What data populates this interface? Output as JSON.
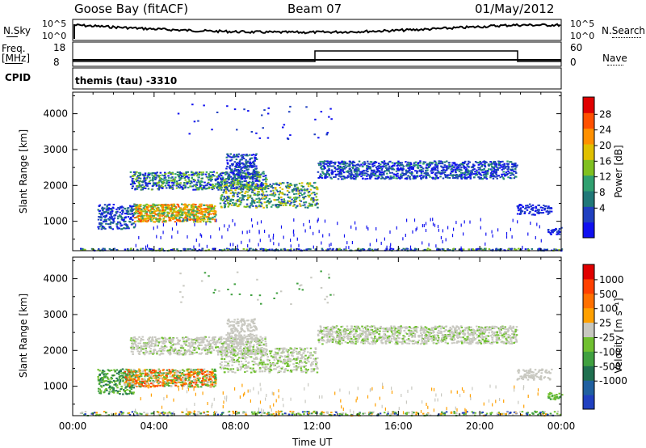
{
  "header": {
    "station": "Goose Bay (fitACF)",
    "beam": "Beam 07",
    "date": "01/May/2012"
  },
  "noise_panel": {
    "left_label": "N.Sky",
    "left_ticks": [
      "10^5",
      "10^0"
    ],
    "right_label": "N.Search",
    "right_ticks": [
      "10^5",
      "10^0"
    ]
  },
  "freq_panel": {
    "left_label_line1": "Freq.",
    "left_label_line2": "[MHz]",
    "left_ticks": [
      "18",
      "8"
    ],
    "right_label": "Nave",
    "right_ticks": [
      "60",
      "0"
    ],
    "cpid_label": "CPID",
    "cpid_text": "themis (tau) -3310"
  },
  "chart_data": [
    {
      "type": "heatmap",
      "name": "power",
      "ylabel": "Slant Range [km]",
      "yticks": [
        1000,
        2000,
        3000,
        4000
      ],
      "ylim": [
        180,
        4600
      ],
      "xticks": [
        "00:00",
        "04:00",
        "08:00",
        "12:00",
        "16:00",
        "20:00",
        "00:00"
      ],
      "xlim_hours": [
        0,
        24
      ],
      "colorbar": {
        "label": "Power [dB]",
        "ticks": [
          "28",
          "24",
          "20",
          "16",
          "12",
          "8",
          "4"
        ],
        "colors": [
          "#1010f0",
          "#2040c0",
          "#207878",
          "#30a070",
          "#80c020",
          "#e0c000",
          "#ff9000",
          "#ff5000",
          "#e00000"
        ]
      }
    },
    {
      "type": "heatmap",
      "name": "velocity",
      "ylabel": "Slant Range [km]",
      "yticks": [
        1000,
        2000,
        3000,
        4000
      ],
      "ylim": [
        180,
        4600
      ],
      "xticks": [
        "00:00",
        "04:00",
        "08:00",
        "12:00",
        "16:00",
        "20:00",
        "00:00"
      ],
      "xlabel": "Time UT",
      "colorbar": {
        "label": "Velocity [m s⁻¹]",
        "ticks": [
          "1000",
          "500",
          "100",
          "25",
          "-25",
          "-100",
          "-500",
          "-1000"
        ],
        "colors": [
          "#2040c0",
          "#2060a0",
          "#207050",
          "#40a040",
          "#70c030",
          "#c8c8c0",
          "#ffa000",
          "#ff7000",
          "#ff4000",
          "#e00000"
        ]
      }
    }
  ]
}
